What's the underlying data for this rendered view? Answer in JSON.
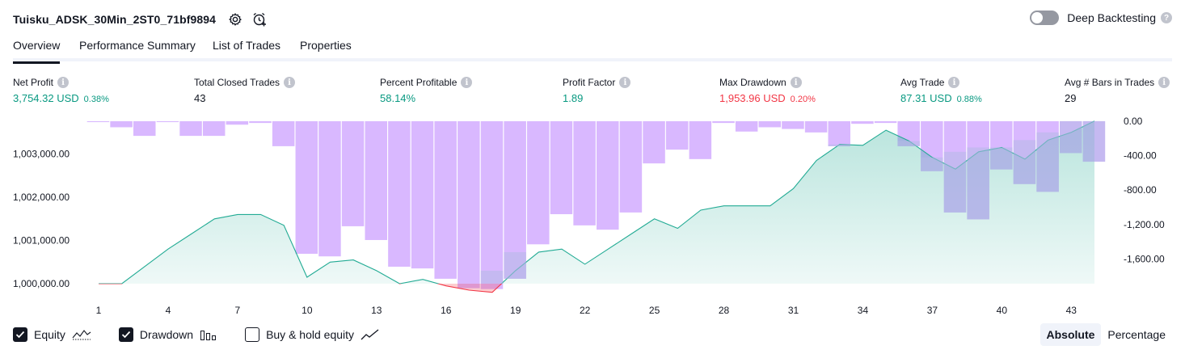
{
  "header": {
    "strategy_name": "Tuisku_ADSK_30Min_2ST0_71bf9894",
    "settings_icon": "gear-icon",
    "alert_icon": "alarm-clock-plus-icon",
    "deep_backtesting_label": "Deep Backtesting",
    "deep_backtesting_enabled": false
  },
  "tabs": [
    {
      "label": "Overview",
      "active": true
    },
    {
      "label": "Performance Summary",
      "active": false
    },
    {
      "label": "List of Trades",
      "active": false
    },
    {
      "label": "Properties",
      "active": false
    }
  ],
  "metrics": [
    {
      "label": "Net Profit",
      "value": "3,754.32 USD",
      "percent": "0.38%",
      "tone": "pos"
    },
    {
      "label": "Total Closed Trades",
      "value": "43",
      "percent": "",
      "tone": ""
    },
    {
      "label": "Percent Profitable",
      "value": "58.14%",
      "percent": "",
      "tone": "pos"
    },
    {
      "label": "Profit Factor",
      "value": "1.89",
      "percent": "",
      "tone": "pos"
    },
    {
      "label": "Max Drawdown",
      "value": "1,953.96 USD",
      "percent": "0.20%",
      "tone": "neg"
    },
    {
      "label": "Avg Trade",
      "value": "87.31 USD",
      "percent": "0.88%",
      "tone": "pos"
    },
    {
      "label": "Avg # Bars in Trades",
      "value": "29",
      "percent": "",
      "tone": ""
    }
  ],
  "chart_data": {
    "type": "line",
    "colors": {
      "equity_line": "#22ab94",
      "equity_fill": "#22ab94",
      "equity_below": "#f23645",
      "drawdown_bar": "#d9b8ff",
      "overlap_bar": "#b4b9e6"
    },
    "x": [
      1,
      2,
      3,
      4,
      5,
      6,
      7,
      8,
      9,
      10,
      11,
      12,
      13,
      14,
      15,
      16,
      17,
      18,
      19,
      20,
      21,
      22,
      23,
      24,
      25,
      26,
      27,
      28,
      29,
      30,
      31,
      32,
      33,
      34,
      35,
      36,
      37,
      38,
      39,
      40,
      41,
      42,
      43,
      44
    ],
    "x_ticks": [
      "1",
      "4",
      "7",
      "10",
      "13",
      "16",
      "19",
      "22",
      "25",
      "28",
      "31",
      "34",
      "37",
      "40",
      "43"
    ],
    "left_axis": {
      "ticks": [
        "1,003,000.00",
        "1,002,000.00",
        "1,001,000.00",
        "1,000,000.00"
      ],
      "ylim": [
        999700,
        1003700
      ]
    },
    "right_axis": {
      "ticks": [
        "0.00",
        "-400.00",
        "-800.00",
        "-1,200.00",
        "-1,600.00"
      ],
      "ylim": [
        -2000,
        0
      ]
    },
    "series": [
      {
        "name": "Equity",
        "values": [
          1000000,
          1000000,
          1000400,
          1000800,
          1001150,
          1001500,
          1001600,
          1001600,
          1001350,
          1000150,
          1000500,
          1000550,
          1000300,
          1000000,
          1000100,
          999950,
          999850,
          999800,
          1000300,
          1000730,
          1000800,
          1000450,
          1000800,
          1001150,
          1001500,
          1001280,
          1001700,
          1001800,
          1001800,
          1001800,
          1002200,
          1002850,
          1003220,
          1003200,
          1003550,
          1003300,
          1002920,
          1002650,
          1003050,
          1003150,
          1002880,
          1003320,
          1003500,
          1003760
        ]
      },
      {
        "name": "Drawdown",
        "values": [
          -10,
          -70,
          -170,
          -10,
          -170,
          -170,
          -40,
          -20,
          -290,
          -1540,
          -1570,
          -1220,
          -1380,
          -1690,
          -1710,
          -1830,
          -1940,
          -1950,
          -1830,
          -1430,
          -1080,
          -1210,
          -1260,
          -1060,
          -490,
          -330,
          -440,
          -20,
          -120,
          -70,
          -90,
          -130,
          -290,
          -30,
          -20,
          -290,
          -580,
          -1060,
          -1140,
          -560,
          -730,
          -820,
          -370,
          -470
        ]
      }
    ]
  },
  "legend": {
    "items": [
      {
        "label": "Equity",
        "checked": true,
        "icon": "equity-line-icon"
      },
      {
        "label": "Drawdown",
        "checked": true,
        "icon": "drawdown-bars-icon"
      },
      {
        "label": "Buy & hold equity",
        "checked": false,
        "icon": "trend-line-icon"
      }
    ],
    "mode_options": [
      "Absolute",
      "Percentage"
    ],
    "mode_selected": "Absolute"
  }
}
